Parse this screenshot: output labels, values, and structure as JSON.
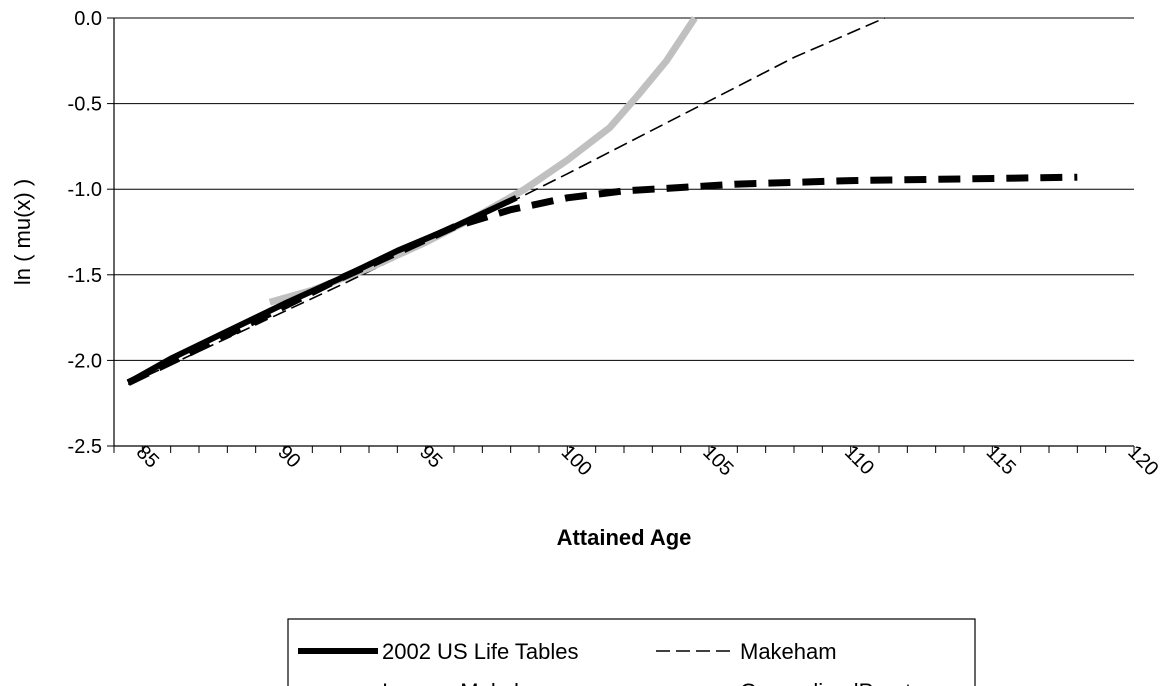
{
  "chart_data": {
    "type": "line",
    "title": "",
    "xlabel": "Attained Age",
    "ylabel": "ln ( mu(x) )",
    "xlim": [
      84,
      120
    ],
    "ylim": [
      -2.5,
      0.0
    ],
    "x_ticks": [
      85,
      90,
      95,
      100,
      105,
      110,
      115,
      120
    ],
    "y_ticks": [
      0.0,
      -0.5,
      -1.0,
      -1.5,
      -2.0,
      -2.5
    ],
    "y_tick_labels": [
      "0.0",
      "-0.5",
      "-1.0",
      "-1.5",
      "-2.0",
      "-2.5"
    ],
    "grid": "horizontal",
    "legend_position": "bottom",
    "series": [
      {
        "name": "2002 US Life Tables",
        "style": "solid-thick",
        "color": "#000000",
        "x": [
          84.5,
          86,
          88,
          90,
          92,
          94,
          96,
          98.2
        ],
        "y": [
          -2.13,
          -1.99,
          -1.83,
          -1.67,
          -1.52,
          -1.36,
          -1.22,
          -1.05
        ]
      },
      {
        "name": "Makeham",
        "style": "dashed-thin",
        "color": "#000000",
        "x": [
          84.5,
          88,
          92,
          96,
          100,
          104,
          108,
          111.2
        ],
        "y": [
          -2.14,
          -1.87,
          -1.56,
          -1.24,
          -0.91,
          -0.57,
          -0.23,
          0.0
        ]
      },
      {
        "name": "Inverse Makeham",
        "style": "dashed-thick",
        "color": "#000000",
        "x": [
          84.5,
          88,
          92,
          96,
          98,
          100,
          102,
          104,
          106,
          110,
          114,
          118
        ],
        "y": [
          -2.13,
          -1.85,
          -1.52,
          -1.22,
          -1.12,
          -1.05,
          -1.01,
          -0.99,
          -0.97,
          -0.95,
          -0.94,
          -0.93
        ]
      },
      {
        "name": "GeneralizedPareto",
        "style": "solid-gray-thick",
        "color": "#c0c0c0",
        "x": [
          89.5,
          91,
          93,
          95,
          97,
          98.5,
          100,
          101.5,
          102.5,
          103.5,
          104.5
        ],
        "y": [
          -1.66,
          -1.59,
          -1.46,
          -1.31,
          -1.14,
          -1.0,
          -0.83,
          -0.64,
          -0.45,
          -0.25,
          0.0
        ]
      }
    ]
  }
}
